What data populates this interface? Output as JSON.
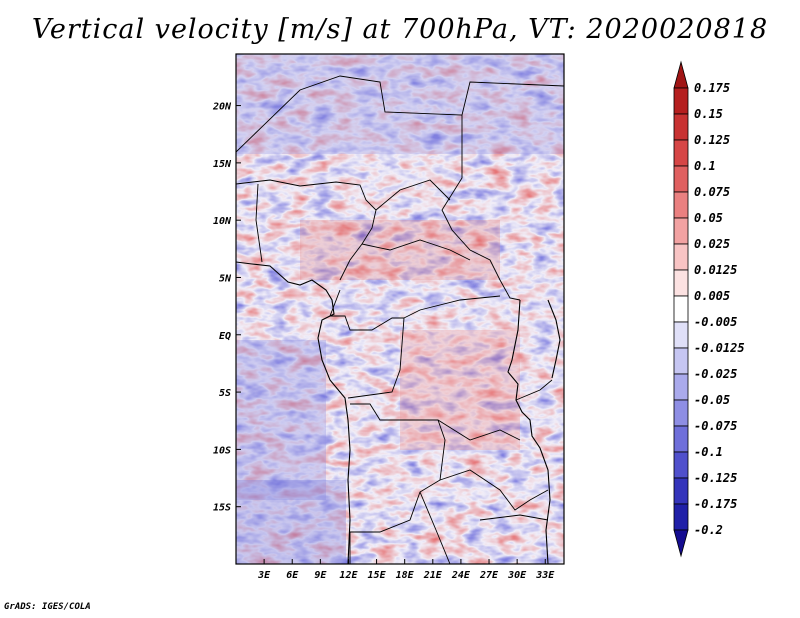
{
  "title": "Vertical velocity [m/s] at 700hPa, VT: 2020020818",
  "credit": "GrADS: IGES/COLA",
  "map": {
    "field": "vertical velocity",
    "level": "700hPa",
    "valid_time": "2020020818",
    "lon_range": [
      0,
      35
    ],
    "lat_range": [
      -20,
      24.5
    ],
    "x_ticks": [
      {
        "label": "3E",
        "value": 3
      },
      {
        "label": "6E",
        "value": 6
      },
      {
        "label": "9E",
        "value": 9
      },
      {
        "label": "12E",
        "value": 12
      },
      {
        "label": "15E",
        "value": 15
      },
      {
        "label": "18E",
        "value": 18
      },
      {
        "label": "21E",
        "value": 21
      },
      {
        "label": "24E",
        "value": 24
      },
      {
        "label": "27E",
        "value": 27
      },
      {
        "label": "30E",
        "value": 30
      },
      {
        "label": "33E",
        "value": 33
      }
    ],
    "y_ticks": [
      {
        "label": "20N",
        "value": 20
      },
      {
        "label": "15N",
        "value": 15
      },
      {
        "label": "10N",
        "value": 10
      },
      {
        "label": "5N",
        "value": 5
      },
      {
        "label": "EQ",
        "value": 0
      },
      {
        "label": "5S",
        "value": -5
      },
      {
        "label": "10S",
        "value": -10
      },
      {
        "label": "15S",
        "value": -15
      }
    ]
  },
  "colorbar": {
    "labels": [
      "0.175",
      "0.15",
      "0.125",
      "0.1",
      "0.075",
      "0.05",
      "0.025",
      "0.0125",
      "0.005",
      "-0.005",
      "-0.0125",
      "-0.025",
      "-0.05",
      "-0.075",
      "-0.1",
      "-0.125",
      "-0.175",
      "-0.2"
    ],
    "colors": [
      "#a01515",
      "#b51f1f",
      "#c83232",
      "#d64646",
      "#e06060",
      "#ea8080",
      "#f2a2a2",
      "#f8c4c4",
      "#fce2e2",
      "#ffffff",
      "#e0e0f8",
      "#c6c6f2",
      "#aaaaec",
      "#8e8ee4",
      "#6f6fda",
      "#5050cc",
      "#3434bb",
      "#2020a8",
      "#140c90"
    ]
  }
}
